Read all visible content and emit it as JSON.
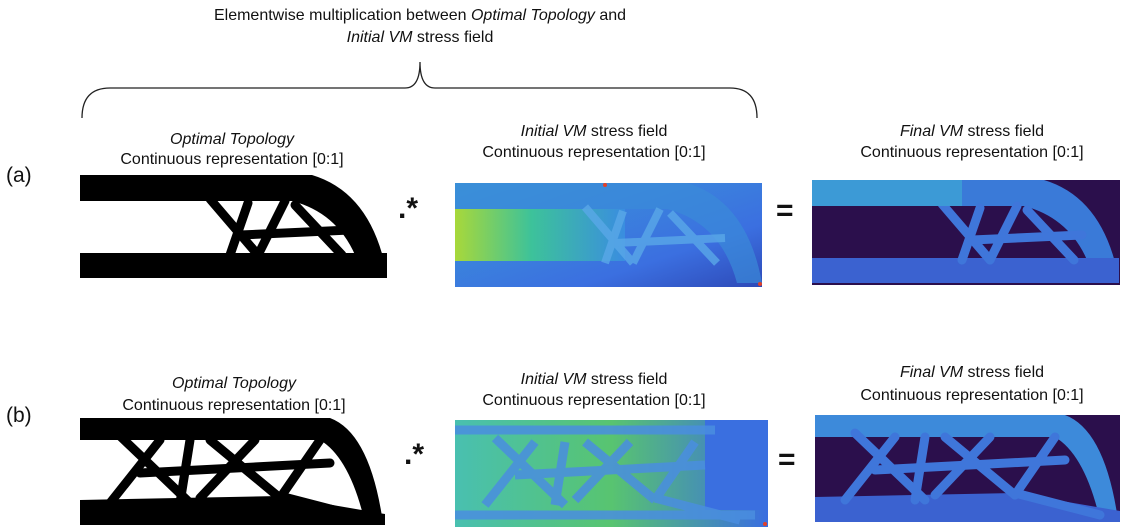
{
  "header": {
    "line1": [
      "Elementwise multiplication between ",
      "Optimal Topology",
      " and"
    ],
    "line2": [
      "Initial VM",
      " stress field"
    ]
  },
  "rows": [
    {
      "label": "(a)",
      "operators": [
        ".*",
        "="
      ],
      "panels": [
        {
          "title_italic": "Optimal Topology",
          "subtitle": "Continuous representation [0:1]"
        },
        {
          "title_italic": "Initial VM",
          "title_rest": " stress field",
          "subtitle": "Continuous representation [0:1]"
        },
        {
          "title_italic": "Final VM",
          "title_rest": " stress field",
          "subtitle": "Continuous representation [0:1]"
        }
      ]
    },
    {
      "label": "(b)",
      "operators": [
        ".*",
        "="
      ],
      "panels": [
        {
          "title_italic": "Optimal Topology",
          "subtitle": "Continuous representation [0:1]"
        },
        {
          "title_italic": "Initial VM",
          "title_rest": " stress field",
          "subtitle": "Continuous representation [0:1]"
        },
        {
          "title_italic": "Final VM",
          "title_rest": " stress field",
          "subtitle": "Continuous representation [0:1]"
        }
      ]
    }
  ]
}
